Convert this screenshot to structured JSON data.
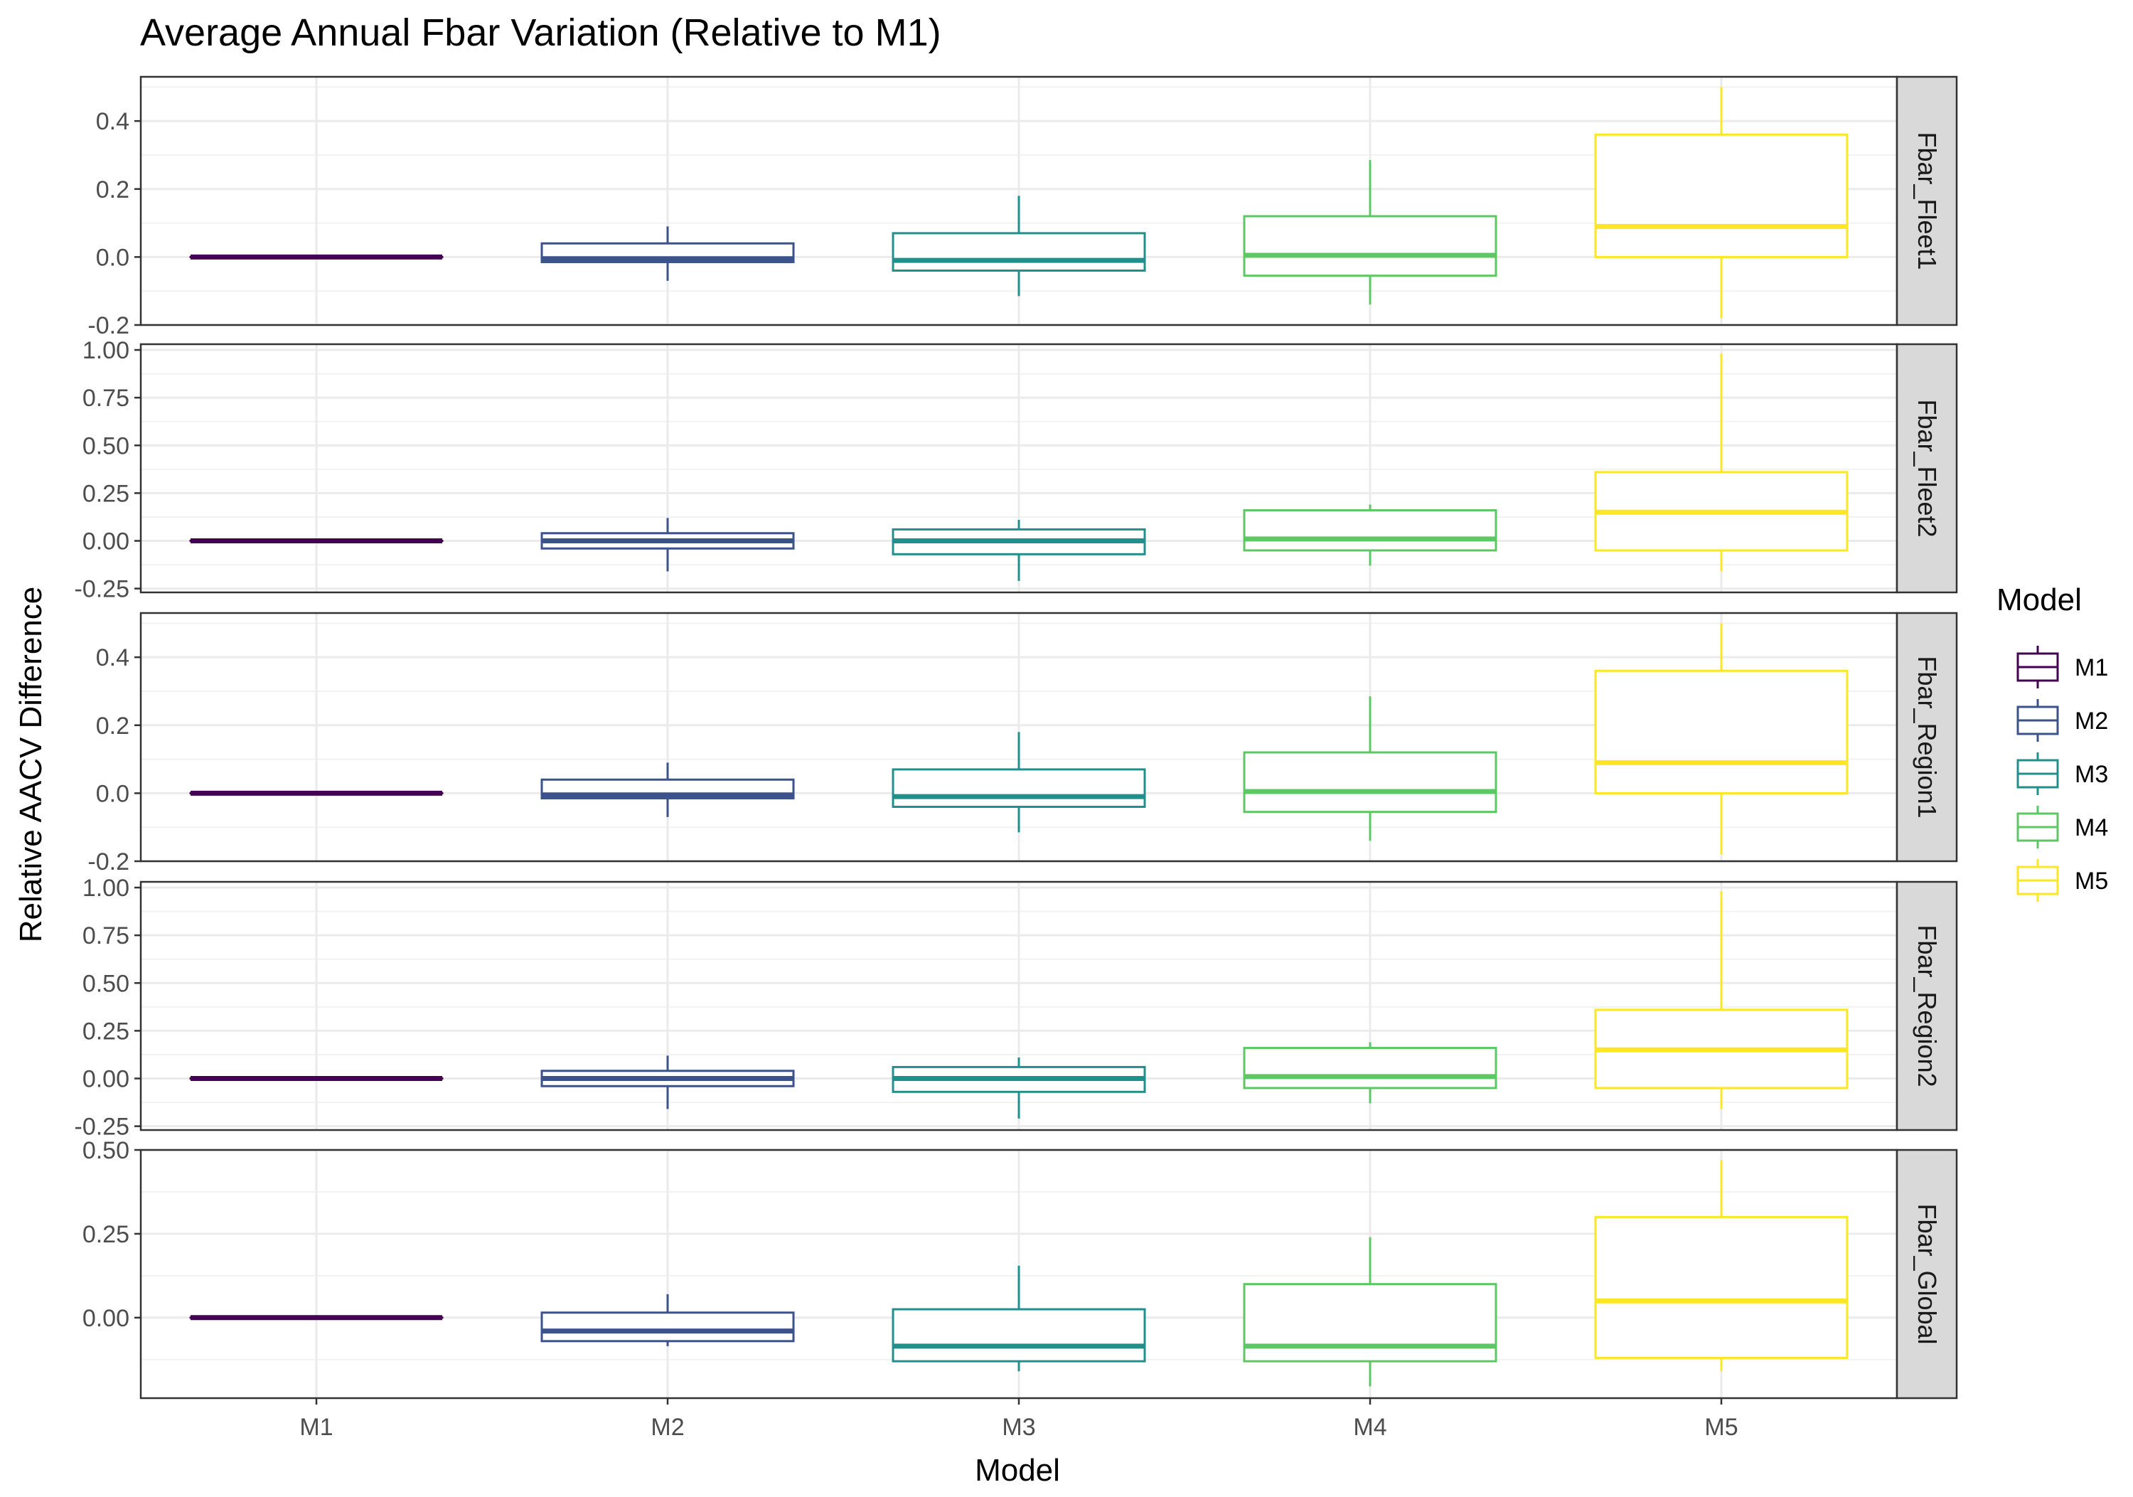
{
  "chart_data": {
    "type": "boxplot",
    "title": "Average Annual Fbar Variation (Relative to M1)",
    "xlabel": "Model",
    "ylabel": "Relative AACV Difference",
    "categories": [
      "M1",
      "M2",
      "M3",
      "M4",
      "M5"
    ],
    "colors": {
      "M1": "#440154",
      "M2": "#3B528B",
      "M3": "#21908C",
      "M4": "#5DC863",
      "M5": "#FDE725"
    },
    "legend": {
      "title": "Model",
      "position": "right",
      "entries": [
        "M1",
        "M2",
        "M3",
        "M4",
        "M5"
      ]
    },
    "grid": true,
    "panels": [
      {
        "label": "Fbar_Fleet1",
        "ylim": [
          -0.2,
          0.53
        ],
        "yticks": [
          -0.2,
          0.0,
          0.2,
          0.4
        ],
        "tick_labels": [
          "-0.2",
          "0.0",
          "0.2",
          "0.4"
        ],
        "boxes": [
          {
            "model": "M1",
            "lower": 0.0,
            "q1": 0.0,
            "median": 0.0,
            "q3": 0.0,
            "upper": 0.0
          },
          {
            "model": "M2",
            "lower": -0.07,
            "q1": -0.015,
            "median": -0.005,
            "q3": 0.04,
            "upper": 0.09
          },
          {
            "model": "M3",
            "lower": -0.115,
            "q1": -0.04,
            "median": -0.01,
            "q3": 0.07,
            "upper": 0.18
          },
          {
            "model": "M4",
            "lower": -0.14,
            "q1": -0.055,
            "median": 0.005,
            "q3": 0.12,
            "upper": 0.285
          },
          {
            "model": "M5",
            "lower": -0.18,
            "q1": 0.0,
            "median": 0.09,
            "q3": 0.36,
            "upper": 0.5
          }
        ]
      },
      {
        "label": "Fbar_Fleet2",
        "ylim": [
          -0.27,
          1.03
        ],
        "yticks": [
          -0.25,
          0.0,
          0.25,
          0.5,
          0.75,
          1.0
        ],
        "tick_labels": [
          "-0.25",
          "0.00",
          "0.25",
          "0.50",
          "0.75",
          "1.00"
        ],
        "boxes": [
          {
            "model": "M1",
            "lower": 0.0,
            "q1": 0.0,
            "median": 0.0,
            "q3": 0.0,
            "upper": 0.0
          },
          {
            "model": "M2",
            "lower": -0.16,
            "q1": -0.04,
            "median": 0.0,
            "q3": 0.04,
            "upper": 0.12
          },
          {
            "model": "M3",
            "lower": -0.21,
            "q1": -0.07,
            "median": 0.0,
            "q3": 0.06,
            "upper": 0.11
          },
          {
            "model": "M4",
            "lower": -0.13,
            "q1": -0.05,
            "median": 0.01,
            "q3": 0.16,
            "upper": 0.19
          },
          {
            "model": "M5",
            "lower": -0.16,
            "q1": -0.05,
            "median": 0.15,
            "q3": 0.36,
            "upper": 0.98
          }
        ]
      },
      {
        "label": "Fbar_Region1",
        "ylim": [
          -0.2,
          0.53
        ],
        "yticks": [
          -0.2,
          0.0,
          0.2,
          0.4
        ],
        "tick_labels": [
          "-0.2",
          "0.0",
          "0.2",
          "0.4"
        ],
        "boxes": [
          {
            "model": "M1",
            "lower": 0.0,
            "q1": 0.0,
            "median": 0.0,
            "q3": 0.0,
            "upper": 0.0
          },
          {
            "model": "M2",
            "lower": -0.07,
            "q1": -0.015,
            "median": -0.005,
            "q3": 0.04,
            "upper": 0.09
          },
          {
            "model": "M3",
            "lower": -0.115,
            "q1": -0.04,
            "median": -0.01,
            "q3": 0.07,
            "upper": 0.18
          },
          {
            "model": "M4",
            "lower": -0.14,
            "q1": -0.055,
            "median": 0.005,
            "q3": 0.12,
            "upper": 0.285
          },
          {
            "model": "M5",
            "lower": -0.18,
            "q1": 0.0,
            "median": 0.09,
            "q3": 0.36,
            "upper": 0.5
          }
        ]
      },
      {
        "label": "Fbar_Region2",
        "ylim": [
          -0.27,
          1.03
        ],
        "yticks": [
          -0.25,
          0.0,
          0.25,
          0.5,
          0.75,
          1.0
        ],
        "tick_labels": [
          "-0.25",
          "0.00",
          "0.25",
          "0.50",
          "0.75",
          "1.00"
        ],
        "boxes": [
          {
            "model": "M1",
            "lower": 0.0,
            "q1": 0.0,
            "median": 0.0,
            "q3": 0.0,
            "upper": 0.0
          },
          {
            "model": "M2",
            "lower": -0.16,
            "q1": -0.04,
            "median": 0.0,
            "q3": 0.04,
            "upper": 0.12
          },
          {
            "model": "M3",
            "lower": -0.21,
            "q1": -0.07,
            "median": 0.0,
            "q3": 0.06,
            "upper": 0.11
          },
          {
            "model": "M4",
            "lower": -0.13,
            "q1": -0.05,
            "median": 0.01,
            "q3": 0.16,
            "upper": 0.19
          },
          {
            "model": "M5",
            "lower": -0.16,
            "q1": -0.05,
            "median": 0.15,
            "q3": 0.36,
            "upper": 0.98
          }
        ]
      },
      {
        "label": "Fbar_Global",
        "ylim": [
          -0.24,
          0.5
        ],
        "yticks": [
          0.0,
          0.25,
          0.5
        ],
        "tick_labels": [
          "0.00",
          "0.25",
          "0.50"
        ],
        "boxes": [
          {
            "model": "M1",
            "lower": 0.0,
            "q1": 0.0,
            "median": 0.0,
            "q3": 0.0,
            "upper": 0.0
          },
          {
            "model": "M2",
            "lower": -0.085,
            "q1": -0.07,
            "median": -0.04,
            "q3": 0.015,
            "upper": 0.07
          },
          {
            "model": "M3",
            "lower": -0.16,
            "q1": -0.13,
            "median": -0.085,
            "q3": 0.025,
            "upper": 0.155
          },
          {
            "model": "M4",
            "lower": -0.205,
            "q1": -0.13,
            "median": -0.085,
            "q3": 0.1,
            "upper": 0.24
          },
          {
            "model": "M5",
            "lower": -0.16,
            "q1": -0.12,
            "median": 0.05,
            "q3": 0.3,
            "upper": 0.47
          }
        ]
      }
    ]
  }
}
